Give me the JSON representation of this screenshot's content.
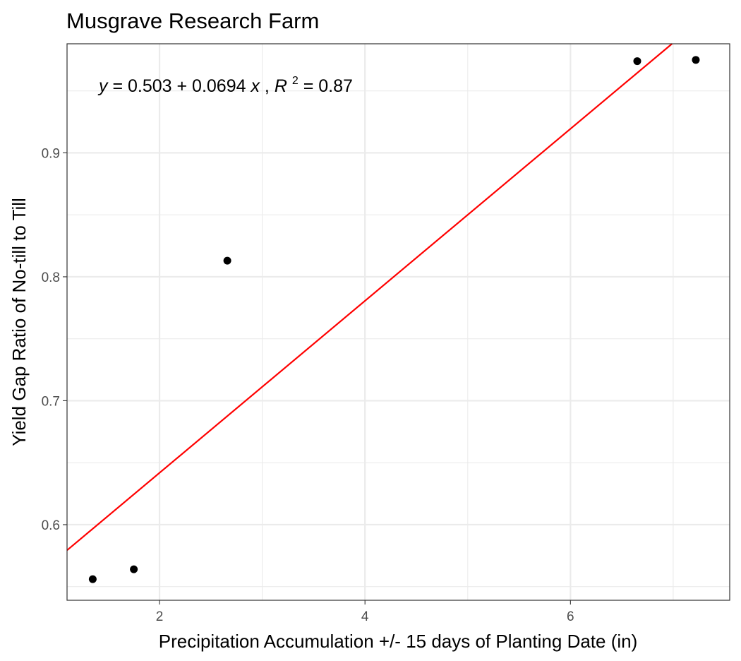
{
  "chart_data": {
    "type": "scatter",
    "title": "Musgrave Research Farm",
    "xlabel": "Precipitation Accumulation +/- 15 days of Planting Date (in)",
    "ylabel": "Yield Gap Ratio of No-till to Till",
    "xlim": [
      1.1,
      7.55
    ],
    "ylim": [
      0.539,
      0.988
    ],
    "x_ticks": [
      2,
      4,
      6
    ],
    "x_tick_labels": [
      "2",
      "4",
      "6"
    ],
    "y_ticks": [
      0.6,
      0.7,
      0.8,
      0.9
    ],
    "y_tick_labels": [
      "0.6",
      "0.7",
      "0.8",
      "0.9"
    ],
    "grid": true,
    "points": [
      {
        "x": 1.35,
        "y": 0.556
      },
      {
        "x": 1.75,
        "y": 0.564
      },
      {
        "x": 2.66,
        "y": 0.813
      },
      {
        "x": 6.65,
        "y": 0.974
      },
      {
        "x": 7.22,
        "y": 0.975
      }
    ],
    "fit_line": {
      "intercept": 0.503,
      "slope": 0.0694,
      "color": "#ff0000"
    },
    "annotation": {
      "y_var": "y",
      "eq_mid": " = 0.503 + 0.0694 ",
      "x_var": "x",
      "sep": ", ",
      "r_var": "R",
      "r_exp": "2",
      "r_val": " = 0.87"
    },
    "colors": {
      "points": "#000000",
      "line": "#ff0000",
      "grid": "#ebebeb",
      "border": "#333333"
    }
  }
}
